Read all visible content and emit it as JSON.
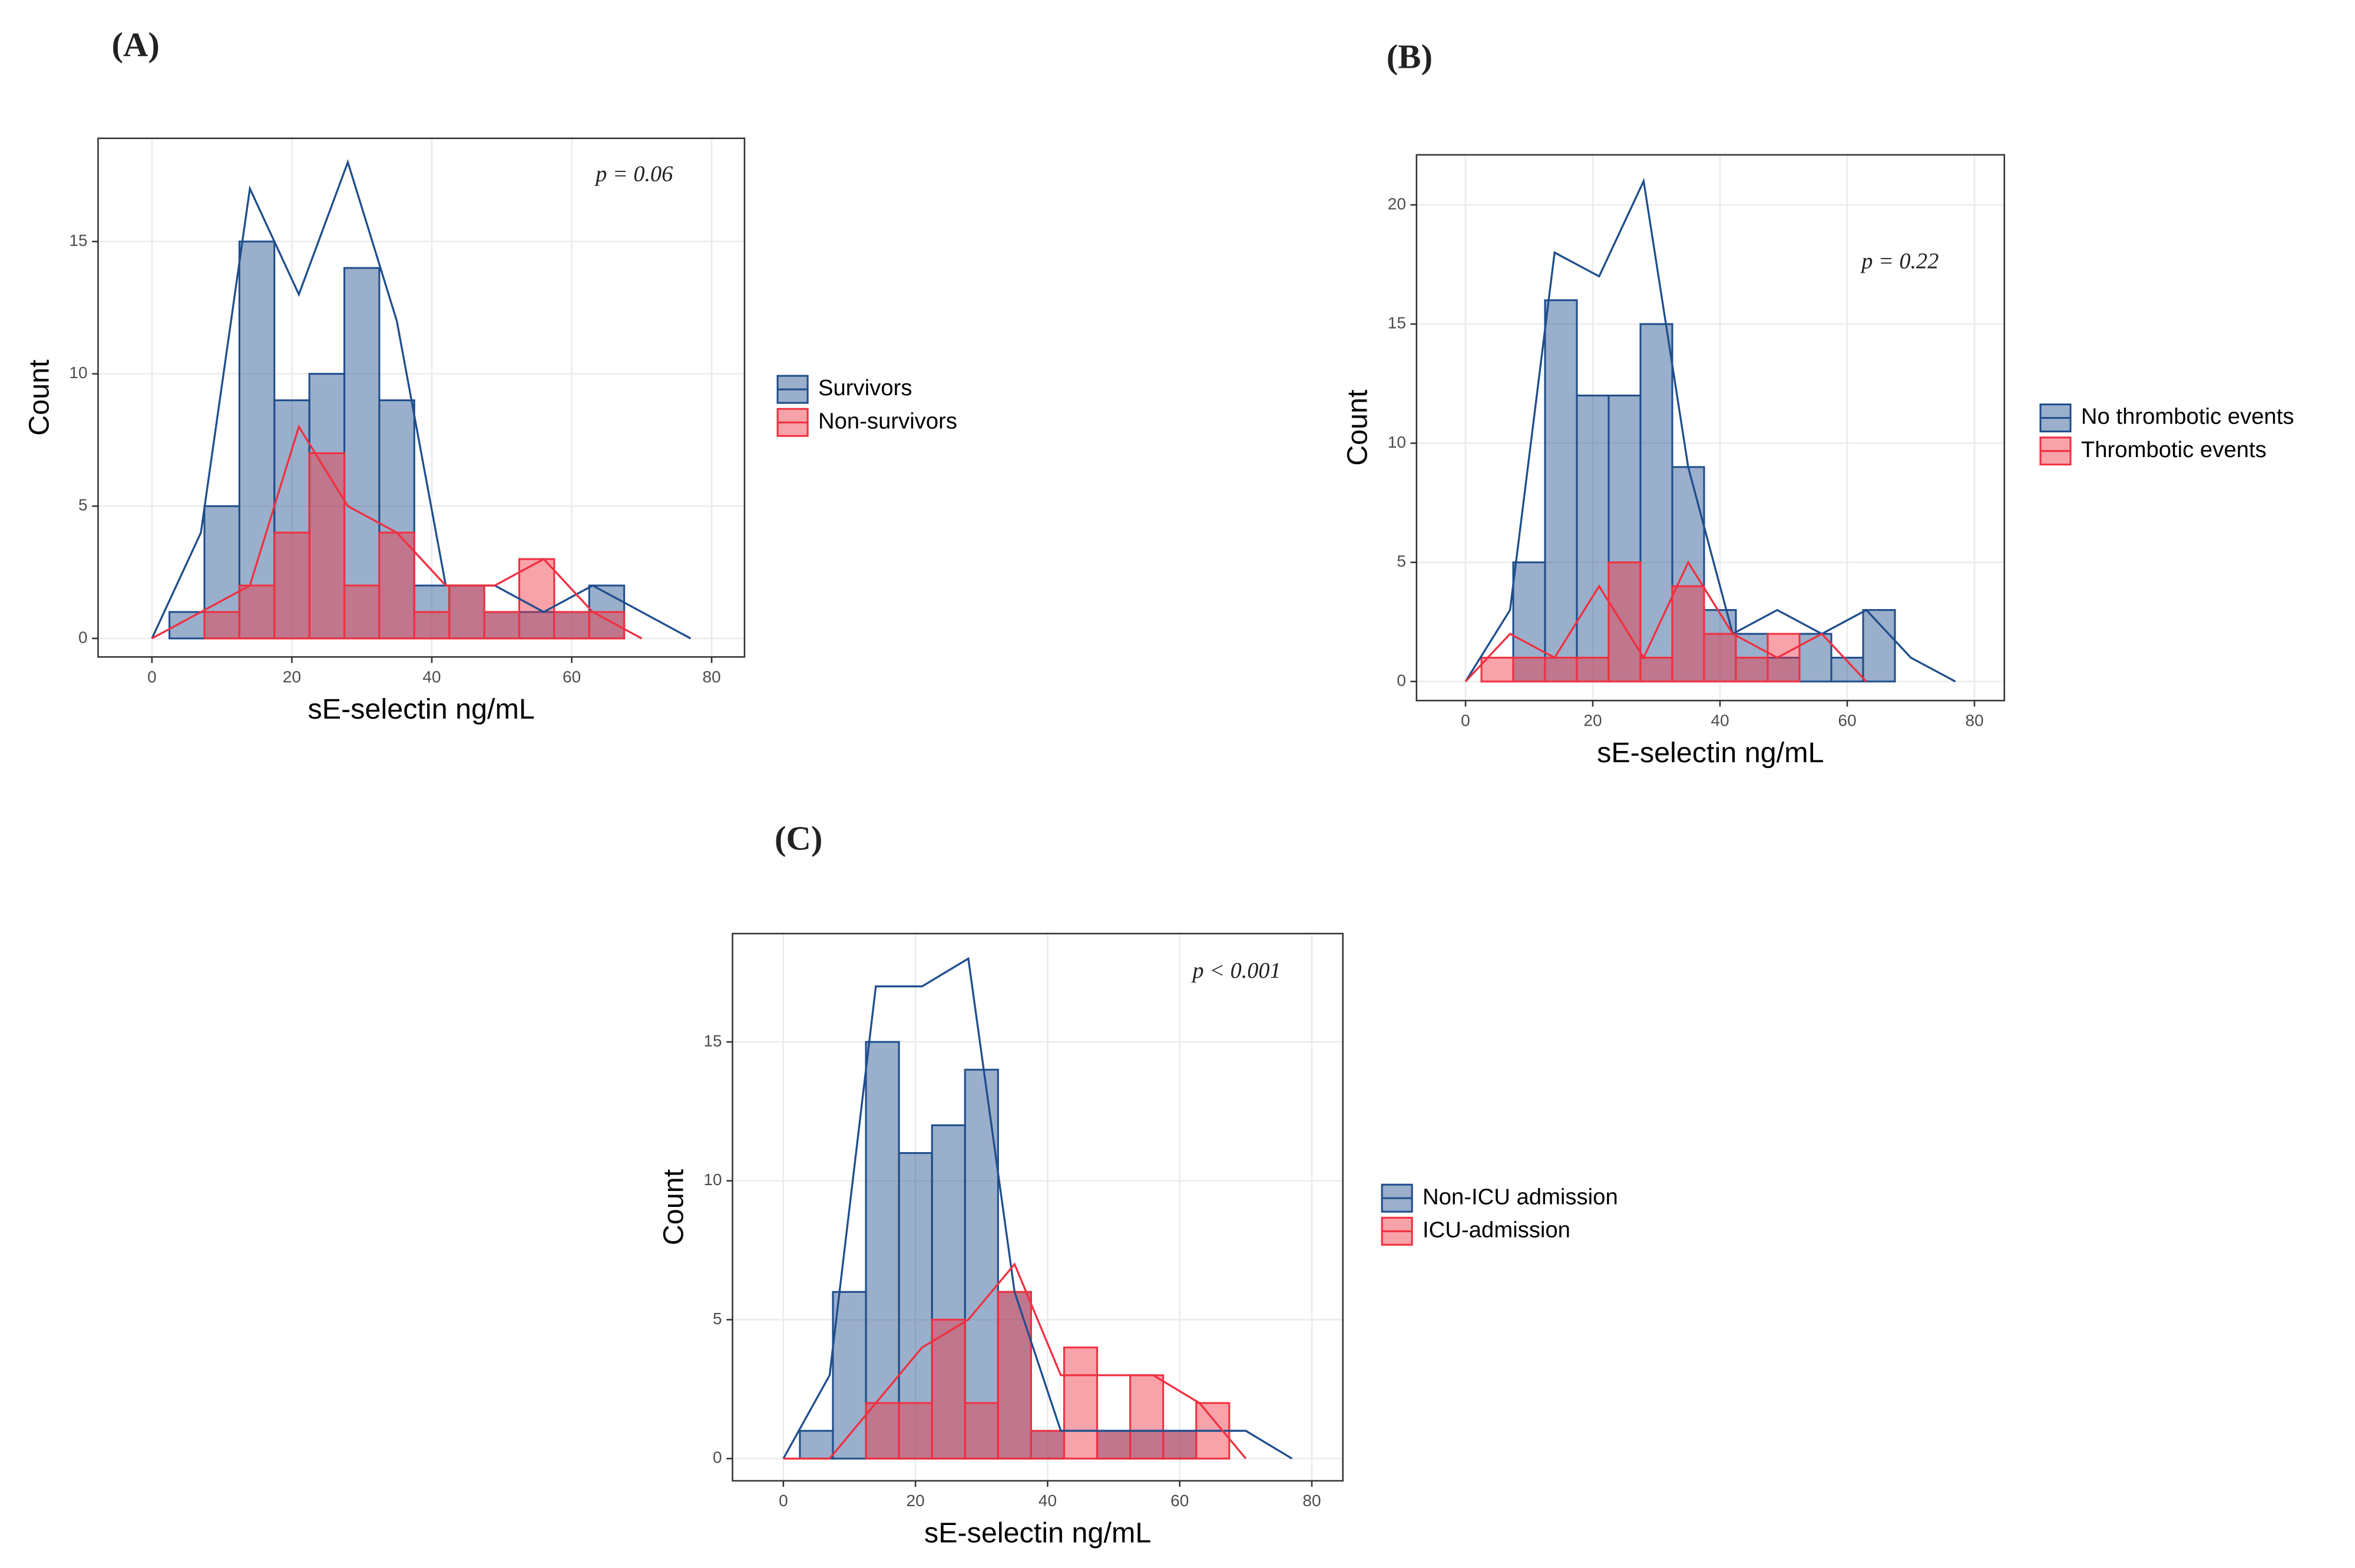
{
  "chart_data": [
    {
      "type": "histogram",
      "panel_label": "(A)",
      "annotation": "p = 0.06",
      "xlabel": "sE-selectin ng/mL",
      "ylabel": "Count",
      "bins": [
        2.5,
        7.5,
        12.5,
        17.5,
        22.5,
        27.5,
        32.5,
        37.5,
        42.5,
        47.5,
        52.5,
        57.5,
        62.5,
        67.5
      ],
      "xlim": [
        -7.7,
        84.7
      ],
      "xticks": [
        0,
        20,
        40,
        60,
        80
      ],
      "ylim": [
        -0.7,
        18.9
      ],
      "yticks": [
        0,
        5,
        10,
        15
      ],
      "grid": true,
      "series": [
        {
          "name": "Survivors",
          "color": "#1f4e8c",
          "values": [
            1,
            5,
            15,
            9,
            10,
            14,
            9,
            2,
            2,
            1,
            1,
            1,
            2
          ],
          "polygon": {
            "x": [
              0,
              7,
              14,
              21,
              28,
              35,
              42,
              49,
              56,
              63,
              70,
              77
            ],
            "values": [
              0,
              4,
              17,
              13,
              18,
              12,
              2,
              2,
              1,
              2,
              1,
              0
            ]
          }
        },
        {
          "name": "Non-survivors",
          "color": "#f03040",
          "values": [
            0,
            1,
            2,
            4,
            7,
            2,
            4,
            1,
            2,
            1,
            3,
            1,
            1
          ],
          "polygon": {
            "x": [
              0,
              7,
              14,
              21,
              28,
              35,
              42,
              49,
              56,
              63,
              70
            ],
            "values": [
              0,
              1,
              2,
              8,
              5,
              4,
              2,
              2,
              3,
              1,
              0
            ]
          }
        }
      ]
    },
    {
      "type": "histogram",
      "panel_label": "(B)",
      "annotation": "p = 0.22",
      "xlabel": "sE-selectin ng/mL",
      "ylabel": "Count",
      "bins": [
        2.5,
        7.5,
        12.5,
        17.5,
        22.5,
        27.5,
        32.5,
        37.5,
        42.5,
        47.5,
        52.5,
        57.5,
        62.5,
        67.5
      ],
      "xlim": [
        -7.7,
        84.7
      ],
      "xticks": [
        0,
        20,
        40,
        60,
        80
      ],
      "ylim": [
        -0.8,
        22.1
      ],
      "yticks": [
        0,
        5,
        10,
        15,
        20
      ],
      "grid": true,
      "series": [
        {
          "name": "No thrombotic events",
          "color": "#1f4e8c",
          "values": [
            0,
            5,
            16,
            12,
            12,
            15,
            9,
            3,
            2,
            1,
            2,
            1,
            3
          ],
          "polygon": {
            "x": [
              0,
              7,
              14,
              21,
              28,
              35,
              42,
              49,
              56,
              63,
              70,
              77
            ],
            "values": [
              0,
              3,
              18,
              17,
              21,
              9,
              2,
              3,
              2,
              3,
              1,
              0
            ]
          }
        },
        {
          "name": "Thrombotic events",
          "color": "#f03040",
          "values": [
            1,
            1,
            1,
            1,
            5,
            1,
            4,
            2,
            1,
            2,
            0,
            0,
            0
          ],
          "polygon": {
            "x": [
              0,
              7,
              14,
              21,
              28,
              35,
              42,
              49,
              56,
              63
            ],
            "values": [
              0,
              2,
              1,
              4,
              1,
              5,
              2,
              1,
              2,
              0
            ]
          }
        }
      ]
    },
    {
      "type": "histogram",
      "panel_label": "(C)",
      "annotation": "p < 0.001",
      "xlabel": "sE-selectin ng/mL",
      "ylabel": "Count",
      "bins": [
        2.5,
        7.5,
        12.5,
        17.5,
        22.5,
        27.5,
        32.5,
        37.5,
        42.5,
        47.5,
        52.5,
        57.5,
        62.5,
        67.5
      ],
      "xlim": [
        -7.7,
        84.7
      ],
      "xticks": [
        0,
        20,
        40,
        60,
        80
      ],
      "ylim": [
        -0.8,
        18.9
      ],
      "yticks": [
        0,
        5,
        10,
        15
      ],
      "grid": true,
      "series": [
        {
          "name": "Non-ICU admission",
          "color": "#1f4e8c",
          "values": [
            1,
            6,
            15,
            11,
            12,
            14,
            6,
            1,
            0,
            1,
            1,
            1,
            0
          ],
          "polygon": {
            "x": [
              0,
              7,
              14,
              21,
              28,
              35,
              42,
              49,
              56,
              63,
              70,
              77
            ],
            "values": [
              0,
              3,
              17,
              17,
              18,
              6,
              1,
              1,
              1,
              1,
              1,
              0
            ]
          }
        },
        {
          "name": "ICU-admission",
          "color": "#f03040",
          "values": [
            0,
            0,
            2,
            2,
            5,
            2,
            6,
            1,
            4,
            1,
            3,
            1,
            2
          ],
          "polygon": {
            "x": [
              0,
              7,
              14,
              21,
              28,
              35,
              42,
              49,
              56,
              63,
              70
            ],
            "values": [
              0,
              0,
              2,
              4,
              5,
              7,
              3,
              3,
              3,
              2,
              0
            ]
          }
        }
      ]
    }
  ]
}
